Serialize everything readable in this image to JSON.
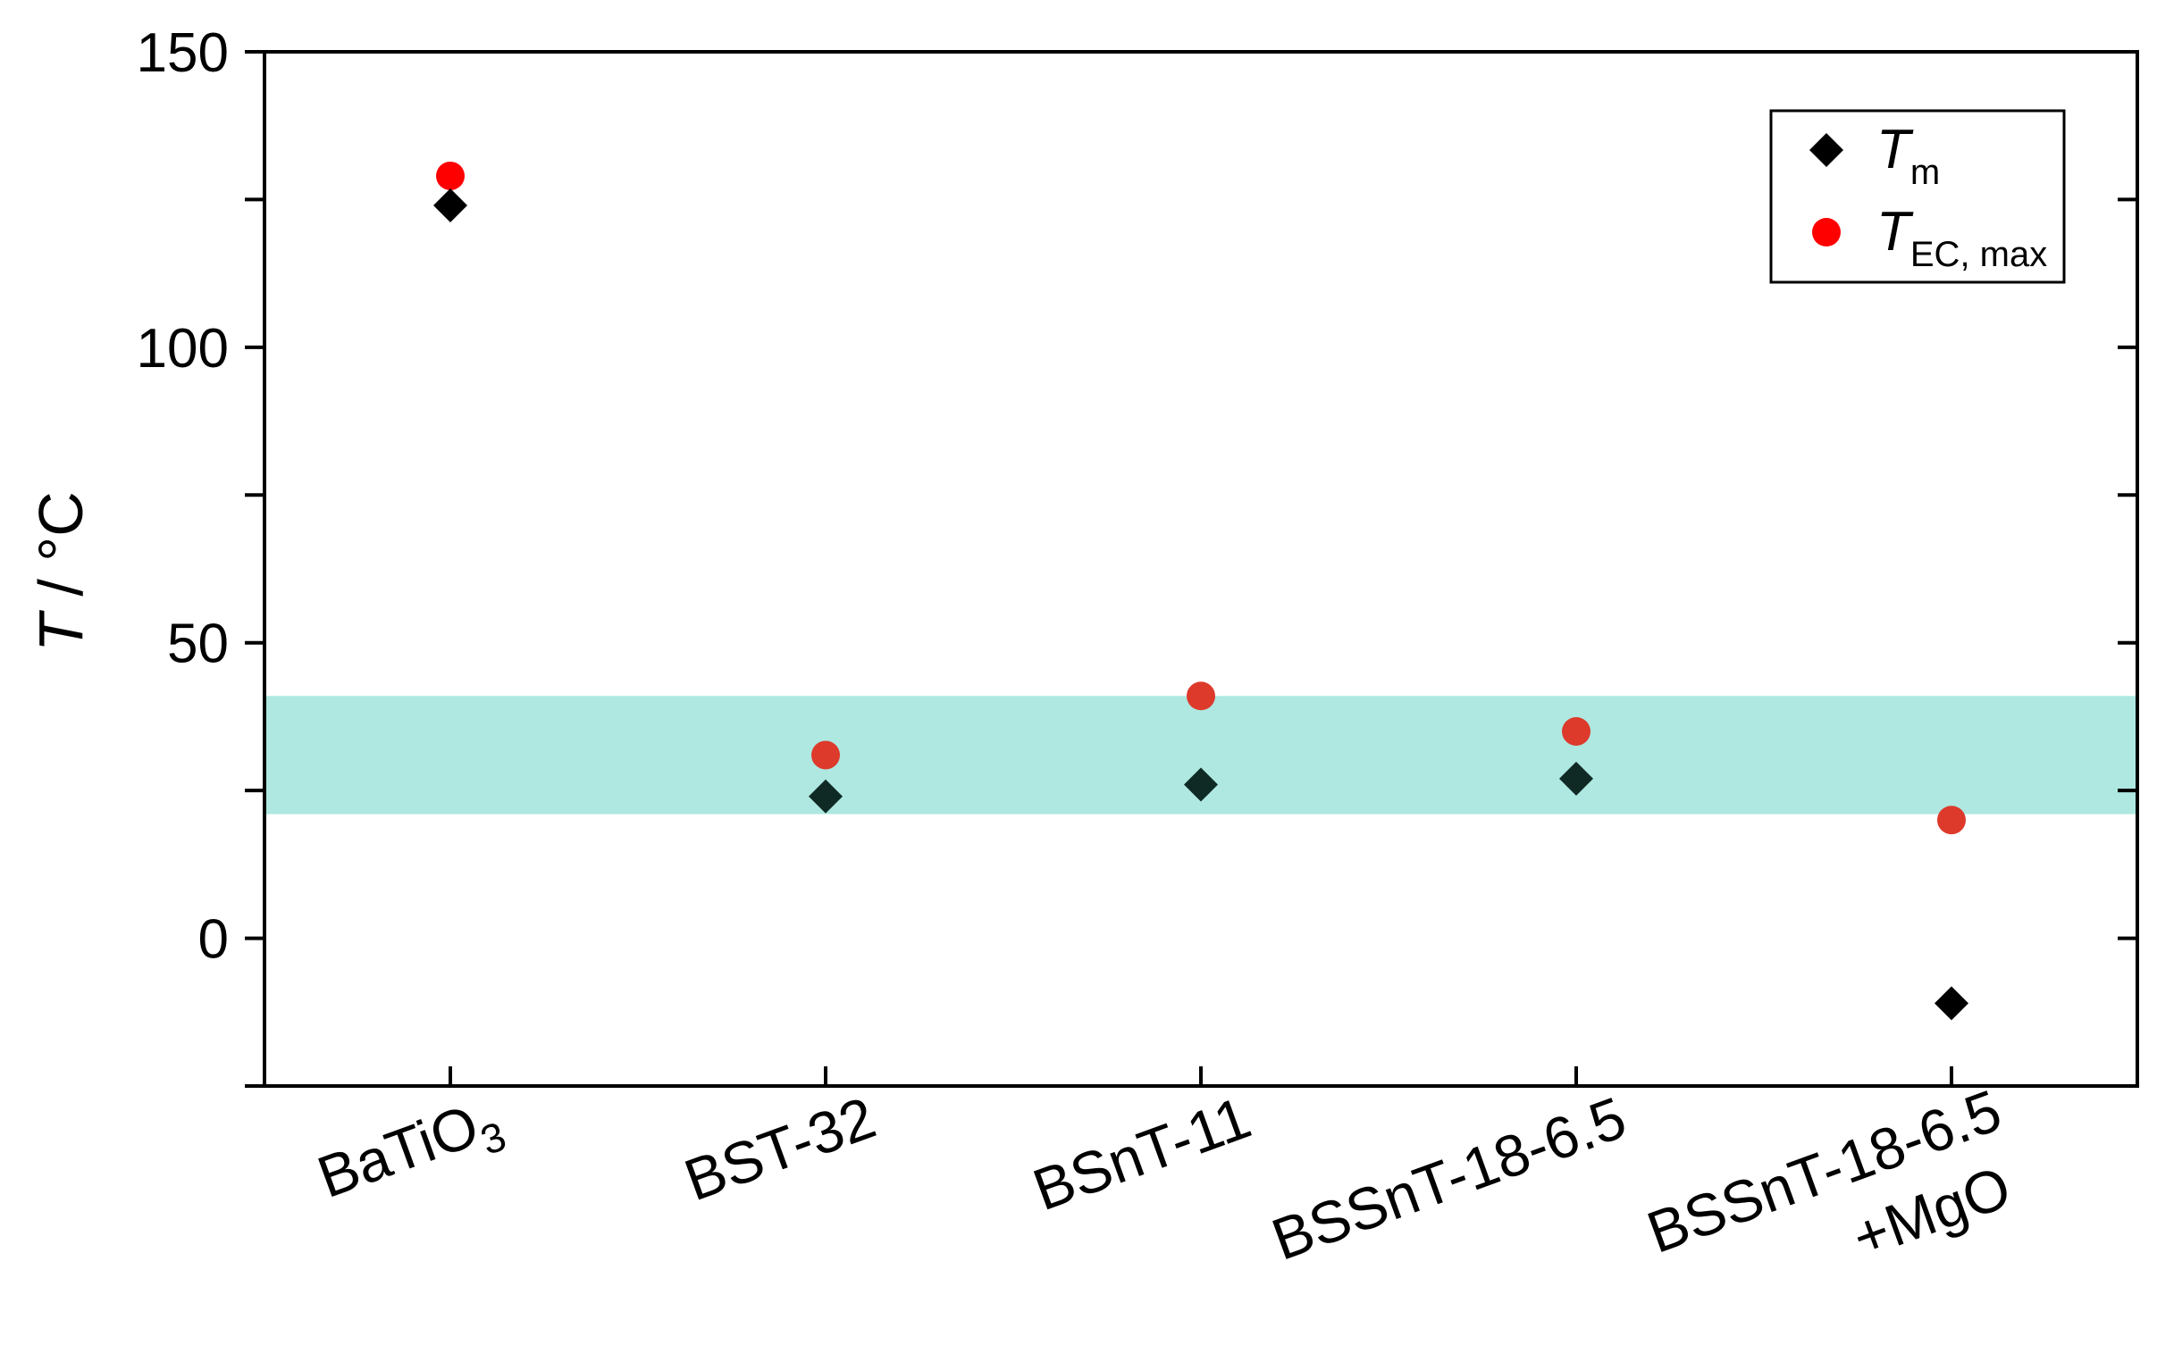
{
  "chart_data": {
    "type": "scatter",
    "categories": [
      "BaTiO",
      "BST-32",
      "BSnT-11",
      "BSSnT-18-6.5",
      "BSSnT-18-6.5"
    ],
    "category_subscripts": [
      "3",
      "",
      "",
      "",
      ""
    ],
    "category_second_lines": [
      "",
      "",
      "",
      "",
      "+MgO"
    ],
    "ylabel": {
      "italic": "T",
      "rest": " / °C"
    },
    "ylim": [
      -25,
      150
    ],
    "yticks": [
      0,
      50,
      100,
      150
    ],
    "yticks_minor": [
      -25,
      25,
      75,
      125
    ],
    "highlight_band": {
      "from": 21,
      "to": 41,
      "color": "#aee8e1"
    },
    "series": [
      {
        "name": {
          "italic": "T",
          "sub": "m"
        },
        "marker": "diamond",
        "color": "#000000",
        "values": [
          124,
          24,
          26,
          27,
          -11
        ]
      },
      {
        "name": {
          "italic": "T",
          "sub": "EC, max"
        },
        "marker": "circle",
        "color": "#ff0000",
        "values": [
          129,
          31,
          41,
          35,
          20
        ]
      }
    ],
    "legend_position": "top-right",
    "grid": false
  }
}
